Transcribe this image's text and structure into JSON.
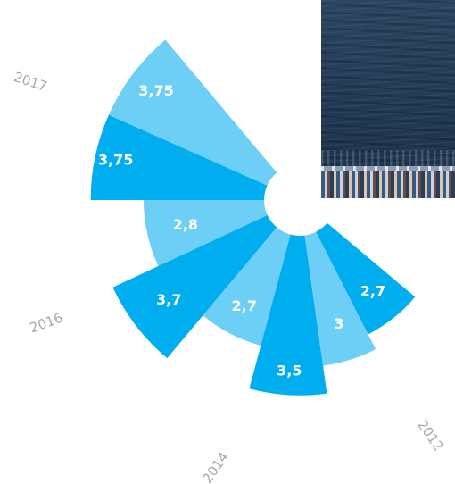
{
  "photo": {
    "description_icon": "sea-photo"
  },
  "chart_data": {
    "type": "polar-bar",
    "value_scale_max": 4,
    "colors": {
      "light": "#6dcff6",
      "dark": "#00aeef"
    },
    "segments": [
      {
        "value": 3.75,
        "label": "3,75",
        "shade": "light"
      },
      {
        "value": 3.75,
        "label": "3,75",
        "shade": "dark"
      },
      {
        "value": 2.8,
        "label": "2,8",
        "shade": "light"
      },
      {
        "value": 3.7,
        "label": "3,7",
        "shade": "dark"
      },
      {
        "value": 2.7,
        "label": "2,7",
        "shade": "light"
      },
      {
        "value": 3.5,
        "label": "3,5",
        "shade": "dark"
      },
      {
        "value": 3,
        "label": "3",
        "shade": "light"
      },
      {
        "value": 2.7,
        "label": "2,7",
        "shade": "dark"
      }
    ],
    "year_labels": [
      "2017",
      "2016",
      "2014",
      "2012"
    ]
  }
}
